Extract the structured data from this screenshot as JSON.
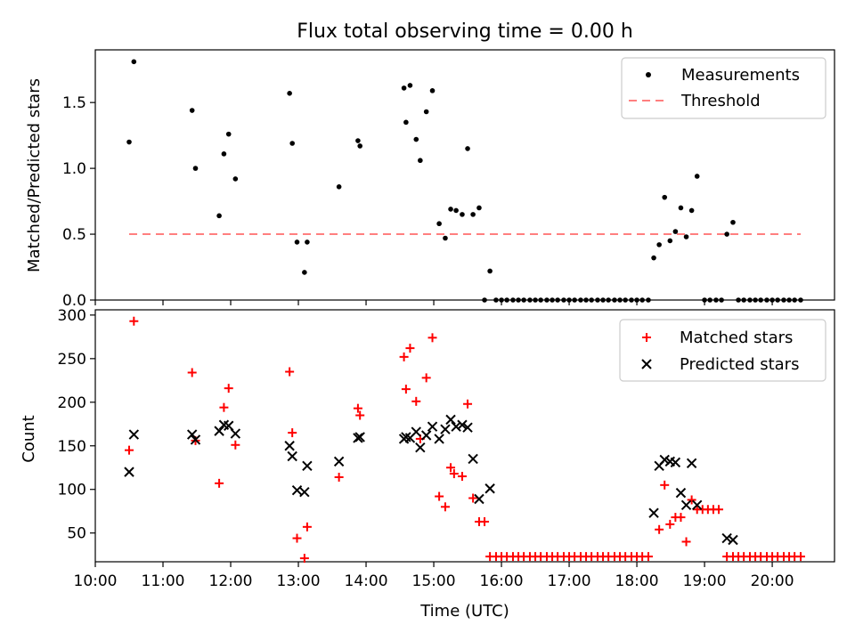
{
  "chart_data": {
    "type": "scatter",
    "title": "Flux total observing time = 0.00 h",
    "xlabel": "Time (UTC)",
    "xlim_hours": [
      10.0,
      20.92
    ],
    "x_ticks": [
      {
        "value": 10,
        "label": "10:00"
      },
      {
        "value": 11,
        "label": "11:00"
      },
      {
        "value": 12,
        "label": "12:00"
      },
      {
        "value": 13,
        "label": "13:00"
      },
      {
        "value": 14,
        "label": "14:00"
      },
      {
        "value": 15,
        "label": "15:00"
      },
      {
        "value": 16,
        "label": "16:00"
      },
      {
        "value": 17,
        "label": "17:00"
      },
      {
        "value": 18,
        "label": "18:00"
      },
      {
        "value": 19,
        "label": "19:00"
      },
      {
        "value": 20,
        "label": "20:00"
      }
    ],
    "top_panel": {
      "ylabel": "Matched/Predicted stars",
      "ylim": [
        0,
        1.9
      ],
      "y_ticks": [
        {
          "value": 0.0,
          "label": "0.0"
        },
        {
          "value": 0.5,
          "label": "0.5"
        },
        {
          "value": 1.0,
          "label": "1.0"
        },
        {
          "value": 1.5,
          "label": "1.5"
        }
      ],
      "legend": {
        "measurements": "Measurements",
        "threshold": "Threshold"
      },
      "threshold": {
        "value": 0.5,
        "x_start": 10.5,
        "x_end": 20.42,
        "color": "#ff7f7f"
      },
      "measurement_color": "#000000",
      "measurements": [
        [
          10.5,
          1.2
        ],
        [
          10.57,
          1.81
        ],
        [
          11.43,
          1.44
        ],
        [
          11.48,
          1.0
        ],
        [
          11.83,
          0.64
        ],
        [
          11.9,
          1.11
        ],
        [
          11.97,
          1.26
        ],
        [
          12.07,
          0.92
        ],
        [
          12.87,
          1.57
        ],
        [
          12.91,
          1.19
        ],
        [
          12.98,
          0.44
        ],
        [
          13.09,
          0.21
        ],
        [
          13.13,
          0.44
        ],
        [
          13.6,
          0.86
        ],
        [
          13.88,
          1.21
        ],
        [
          13.91,
          1.17
        ],
        [
          14.56,
          1.61
        ],
        [
          14.59,
          1.35
        ],
        [
          14.65,
          1.63
        ],
        [
          14.74,
          1.22
        ],
        [
          14.8,
          1.06
        ],
        [
          14.89,
          1.43
        ],
        [
          14.98,
          1.59
        ],
        [
          15.08,
          0.58
        ],
        [
          15.17,
          0.47
        ],
        [
          15.25,
          0.69
        ],
        [
          15.33,
          0.68
        ],
        [
          15.42,
          0.65
        ],
        [
          15.5,
          1.15
        ],
        [
          15.58,
          0.65
        ],
        [
          15.67,
          0.7
        ],
        [
          15.75,
          0.0
        ],
        [
          15.83,
          0.22
        ],
        [
          15.92,
          0.0
        ],
        [
          16.0,
          0.0
        ],
        [
          16.08,
          0.0
        ],
        [
          16.17,
          0.0
        ],
        [
          16.25,
          0.0
        ],
        [
          16.33,
          0.0
        ],
        [
          16.42,
          0.0
        ],
        [
          16.5,
          0.0
        ],
        [
          16.58,
          0.0
        ],
        [
          16.67,
          0.0
        ],
        [
          16.75,
          0.0
        ],
        [
          16.83,
          0.0
        ],
        [
          16.92,
          0.0
        ],
        [
          17.0,
          0.0
        ],
        [
          17.08,
          0.0
        ],
        [
          17.17,
          0.0
        ],
        [
          17.25,
          0.0
        ],
        [
          17.33,
          0.0
        ],
        [
          17.42,
          0.0
        ],
        [
          17.5,
          0.0
        ],
        [
          17.58,
          0.0
        ],
        [
          17.67,
          0.0
        ],
        [
          17.75,
          0.0
        ],
        [
          17.83,
          0.0
        ],
        [
          17.92,
          0.0
        ],
        [
          18.0,
          0.0
        ],
        [
          18.08,
          0.0
        ],
        [
          18.17,
          0.0
        ],
        [
          18.25,
          0.32
        ],
        [
          18.33,
          0.42
        ],
        [
          18.41,
          0.78
        ],
        [
          18.49,
          0.45
        ],
        [
          18.57,
          0.52
        ],
        [
          18.65,
          0.7
        ],
        [
          18.73,
          0.48
        ],
        [
          18.81,
          0.68
        ],
        [
          18.89,
          0.94
        ],
        [
          19.0,
          0.0
        ],
        [
          19.08,
          0.0
        ],
        [
          19.17,
          0.0
        ],
        [
          19.25,
          0.0
        ],
        [
          19.33,
          0.5
        ],
        [
          19.42,
          0.59
        ],
        [
          19.5,
          0.0
        ],
        [
          19.58,
          0.0
        ],
        [
          19.67,
          0.0
        ],
        [
          19.75,
          0.0
        ],
        [
          19.83,
          0.0
        ],
        [
          19.92,
          0.0
        ],
        [
          20.0,
          0.0
        ],
        [
          20.08,
          0.0
        ],
        [
          20.17,
          0.0
        ],
        [
          20.25,
          0.0
        ],
        [
          20.33,
          0.0
        ],
        [
          20.42,
          0.0
        ]
      ]
    },
    "bottom_panel": {
      "ylabel": "Count",
      "ylim": [
        17,
        306
      ],
      "y_ticks": [
        {
          "value": 50,
          "label": "50"
        },
        {
          "value": 100,
          "label": "100"
        },
        {
          "value": 150,
          "label": "150"
        },
        {
          "value": 200,
          "label": "200"
        },
        {
          "value": 250,
          "label": "250"
        },
        {
          "value": 300,
          "label": "300"
        }
      ],
      "legend": {
        "matched": "Matched stars",
        "predicted": "Predicted stars"
      },
      "matched_color": "#ff0000",
      "predicted_color": "#000000",
      "matched": [
        [
          10.5,
          145
        ],
        [
          10.57,
          293
        ],
        [
          11.43,
          234
        ],
        [
          11.48,
          156
        ],
        [
          11.83,
          107
        ],
        [
          11.9,
          194
        ],
        [
          11.97,
          216
        ],
        [
          12.07,
          151
        ],
        [
          12.87,
          235
        ],
        [
          12.91,
          165
        ],
        [
          12.98,
          44
        ],
        [
          13.09,
          21
        ],
        [
          13.13,
          57
        ],
        [
          13.6,
          114
        ],
        [
          13.88,
          193
        ],
        [
          13.91,
          185
        ],
        [
          14.56,
          252
        ],
        [
          14.59,
          215
        ],
        [
          14.65,
          262
        ],
        [
          14.74,
          201
        ],
        [
          14.8,
          158
        ],
        [
          14.89,
          228
        ],
        [
          14.98,
          274
        ],
        [
          15.08,
          92
        ],
        [
          15.17,
          80
        ],
        [
          15.25,
          125
        ],
        [
          15.3,
          118
        ],
        [
          15.42,
          115
        ],
        [
          15.5,
          198
        ],
        [
          15.58,
          90
        ],
        [
          15.67,
          63
        ],
        [
          15.75,
          63
        ],
        [
          15.83,
          23
        ],
        [
          15.92,
          23
        ],
        [
          16.0,
          23
        ],
        [
          16.08,
          23
        ],
        [
          16.17,
          23
        ],
        [
          16.25,
          23
        ],
        [
          16.33,
          23
        ],
        [
          16.42,
          23
        ],
        [
          16.5,
          23
        ],
        [
          16.58,
          23
        ],
        [
          16.67,
          23
        ],
        [
          16.75,
          23
        ],
        [
          16.83,
          23
        ],
        [
          16.92,
          23
        ],
        [
          17.0,
          23
        ],
        [
          17.08,
          23
        ],
        [
          17.17,
          23
        ],
        [
          17.25,
          23
        ],
        [
          17.33,
          23
        ],
        [
          17.42,
          23
        ],
        [
          17.5,
          23
        ],
        [
          17.58,
          23
        ],
        [
          17.67,
          23
        ],
        [
          17.75,
          23
        ],
        [
          17.83,
          23
        ],
        [
          17.92,
          23
        ],
        [
          18.0,
          23
        ],
        [
          18.08,
          23
        ],
        [
          18.17,
          23
        ],
        [
          18.33,
          54
        ],
        [
          18.41,
          105
        ],
        [
          18.49,
          60
        ],
        [
          18.57,
          68
        ],
        [
          18.65,
          68
        ],
        [
          18.73,
          40
        ],
        [
          18.81,
          88
        ],
        [
          18.89,
          77
        ],
        [
          18.97,
          77
        ],
        [
          19.05,
          77
        ],
        [
          19.13,
          77
        ],
        [
          19.21,
          77
        ],
        [
          19.33,
          23
        ],
        [
          19.42,
          23
        ],
        [
          19.5,
          23
        ],
        [
          19.58,
          23
        ],
        [
          19.67,
          23
        ],
        [
          19.75,
          23
        ],
        [
          19.83,
          23
        ],
        [
          19.92,
          23
        ],
        [
          20.0,
          23
        ],
        [
          20.08,
          23
        ],
        [
          20.17,
          23
        ],
        [
          20.25,
          23
        ],
        [
          20.33,
          23
        ],
        [
          20.42,
          23
        ]
      ],
      "predicted": [
        [
          10.5,
          120
        ],
        [
          10.57,
          163
        ],
        [
          11.43,
          163
        ],
        [
          11.48,
          157
        ],
        [
          11.83,
          167
        ],
        [
          11.9,
          174
        ],
        [
          11.97,
          173
        ],
        [
          12.07,
          164
        ],
        [
          12.87,
          150
        ],
        [
          12.91,
          138
        ],
        [
          12.98,
          99
        ],
        [
          13.09,
          97
        ],
        [
          13.13,
          127
        ],
        [
          13.6,
          132
        ],
        [
          13.88,
          159
        ],
        [
          13.91,
          160
        ],
        [
          14.56,
          158
        ],
        [
          14.59,
          160
        ],
        [
          14.65,
          159
        ],
        [
          14.74,
          166
        ],
        [
          14.8,
          148
        ],
        [
          14.89,
          162
        ],
        [
          14.98,
          172
        ],
        [
          15.08,
          158
        ],
        [
          15.17,
          169
        ],
        [
          15.25,
          180
        ],
        [
          15.33,
          172
        ],
        [
          15.42,
          174
        ],
        [
          15.5,
          171
        ],
        [
          15.58,
          135
        ],
        [
          15.67,
          89
        ],
        [
          15.83,
          101
        ],
        [
          18.25,
          73
        ],
        [
          18.33,
          127
        ],
        [
          18.41,
          134
        ],
        [
          18.49,
          132
        ],
        [
          18.57,
          131
        ],
        [
          18.65,
          96
        ],
        [
          18.73,
          82
        ],
        [
          18.81,
          130
        ],
        [
          18.89,
          82
        ],
        [
          19.33,
          44
        ],
        [
          19.42,
          42
        ]
      ]
    }
  }
}
